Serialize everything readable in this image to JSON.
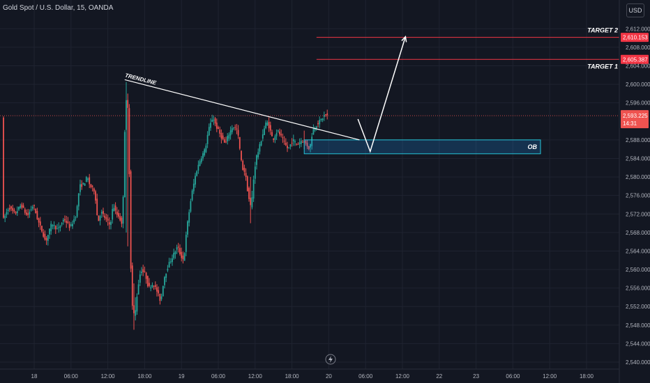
{
  "header": {
    "title": "Gold Spot / U.S. Dollar, 15, OANDA",
    "currency": "USD"
  },
  "colors": {
    "background": "#131722",
    "grid": "#1f2330",
    "text": "#b2b5be",
    "up": "#26a69a",
    "down": "#ef5350",
    "target_line": "#f23645",
    "ob_fill": "#2196f3",
    "ob_border": "#26c6da",
    "drawing": "#ffffff"
  },
  "icons": {
    "replay": "lightning-icon"
  },
  "chart_data": {
    "type": "candlestick",
    "symbol": "Gold Spot / U.S. Dollar",
    "ylim": [
      2538.5,
      2614
    ],
    "y_ticks": [
      {
        "value": 2540,
        "label": "2,540.000"
      },
      {
        "value": 2544,
        "label": "2,544.000"
      },
      {
        "value": 2548,
        "label": "2,548.000"
      },
      {
        "value": 2552,
        "label": "2,552.000"
      },
      {
        "value": 2556,
        "label": "2,556.000"
      },
      {
        "value": 2560,
        "label": "2,560.000"
      },
      {
        "value": 2564,
        "label": "2,564.000"
      },
      {
        "value": 2568,
        "label": "2,568.000"
      },
      {
        "value": 2572,
        "label": "2,572.000"
      },
      {
        "value": 2576,
        "label": "2,576.000"
      },
      {
        "value": 2580,
        "label": "2,580.000"
      },
      {
        "value": 2584,
        "label": "2,584.000"
      },
      {
        "value": 2588,
        "label": "2,588.000"
      },
      {
        "value": 2596,
        "label": "2,596.000"
      },
      {
        "value": 2600,
        "label": "2,600.000"
      },
      {
        "value": 2604,
        "label": "2,604.000"
      },
      {
        "value": 2608,
        "label": "2,608.000"
      },
      {
        "value": 2612,
        "label": "2,612.000"
      }
    ],
    "x_ticks": [
      {
        "t": 0,
        "label": "18"
      },
      {
        "t": 24,
        "label": "06:00"
      },
      {
        "t": 48,
        "label": "12:00"
      },
      {
        "t": 72,
        "label": "18:00"
      },
      {
        "t": 96,
        "label": "19"
      },
      {
        "t": 120,
        "label": "06:00"
      },
      {
        "t": 144,
        "label": "12:00"
      },
      {
        "t": 168,
        "label": "18:00"
      },
      {
        "t": 192,
        "label": "20"
      },
      {
        "t": 216,
        "label": "06:00"
      },
      {
        "t": 240,
        "label": "12:00"
      },
      {
        "t": 264,
        "label": "22"
      },
      {
        "t": 288,
        "label": "23"
      },
      {
        "t": 312,
        "label": "06:00"
      },
      {
        "t": 336,
        "label": "12:00"
      },
      {
        "t": 360,
        "label": "18:00"
      }
    ],
    "price_path": [
      [
        -20,
        2570.5
      ],
      [
        -16,
        2573.5
      ],
      [
        -12,
        2572
      ],
      [
        -8,
        2574
      ],
      [
        -4,
        2571.5
      ],
      [
        0,
        2574
      ],
      [
        3,
        2570.5
      ],
      [
        6,
        2568
      ],
      [
        8,
        2566
      ],
      [
        12,
        2570
      ],
      [
        16,
        2568.5
      ],
      [
        20,
        2571
      ],
      [
        24,
        2569
      ],
      [
        28,
        2572
      ],
      [
        30,
        2578
      ],
      [
        33,
        2578.5
      ],
      [
        35,
        2580
      ],
      [
        37,
        2578
      ],
      [
        40,
        2577
      ],
      [
        42,
        2570
      ],
      [
        44,
        2572.5
      ],
      [
        47,
        2571
      ],
      [
        50,
        2569.5
      ],
      [
        52,
        2574
      ],
      [
        54,
        2572
      ],
      [
        56,
        2571.5
      ],
      [
        58,
        2569
      ],
      [
        60,
        2597
      ],
      [
        62,
        2594
      ],
      [
        63,
        2568
      ],
      [
        64,
        2553
      ],
      [
        66,
        2549.5
      ],
      [
        68,
        2556
      ],
      [
        70,
        2560
      ],
      [
        73,
        2559
      ],
      [
        75,
        2556
      ],
      [
        78,
        2557
      ],
      [
        81,
        2555
      ],
      [
        83,
        2553
      ],
      [
        85,
        2558
      ],
      [
        88,
        2561
      ],
      [
        91,
        2563
      ],
      [
        94,
        2565
      ],
      [
        96,
        2563
      ],
      [
        98,
        2562
      ],
      [
        100,
        2569
      ],
      [
        103,
        2576
      ],
      [
        106,
        2581
      ],
      [
        109,
        2584
      ],
      [
        112,
        2586
      ],
      [
        114,
        2590
      ],
      [
        117,
        2593
      ],
      [
        119,
        2591
      ],
      [
        122,
        2589
      ],
      [
        125,
        2587
      ],
      [
        127,
        2589
      ],
      [
        130,
        2591
      ],
      [
        133,
        2590
      ],
      [
        136,
        2582
      ],
      [
        138,
        2581
      ],
      [
        140,
        2576
      ],
      [
        142,
        2573
      ],
      [
        143,
        2578
      ],
      [
        145,
        2584
      ],
      [
        147,
        2586
      ],
      [
        150,
        2590
      ],
      [
        152,
        2592
      ],
      [
        154,
        2590.5
      ],
      [
        156,
        2588
      ],
      [
        159,
        2590
      ],
      [
        161,
        2589
      ],
      [
        164,
        2587
      ],
      [
        166,
        2586
      ],
      [
        169,
        2588
      ],
      [
        172,
        2587
      ],
      [
        175,
        2588
      ],
      [
        178,
        2587
      ],
      [
        180,
        2586
      ],
      [
        182,
        2590
      ],
      [
        185,
        2591.5
      ],
      [
        188,
        2592.5
      ],
      [
        190,
        2593.5
      ],
      [
        191,
        2593.2
      ]
    ],
    "spikes": [
      {
        "t": 60,
        "high": 2600.5,
        "low": 2568
      },
      {
        "t": 61,
        "high": 2598,
        "low": 2565
      },
      {
        "t": 64,
        "high": 2561,
        "low": 2551.5
      },
      {
        "t": 65,
        "high": 2557,
        "low": 2547
      },
      {
        "t": 66,
        "high": 2554,
        "low": 2549
      },
      {
        "t": 141,
        "high": 2580,
        "low": 2570
      },
      {
        "t": 142,
        "high": 2577,
        "low": 2573
      },
      {
        "t": 176,
        "high": 2590,
        "low": 2586
      },
      {
        "t": 178,
        "high": 2588,
        "low": 2586
      }
    ],
    "current_price": {
      "value": 2593.225,
      "label": "2,593.225",
      "countdown": "14:31"
    },
    "levels": [
      {
        "name": "TARGET 2",
        "value": 2610.153,
        "label": "2,610.153",
        "t_start": 184
      },
      {
        "name": "TARGET 1",
        "value": 2605.387,
        "label": "2,605.387",
        "t_start": 184
      }
    ],
    "order_block": {
      "label": "OB",
      "t_start": 176,
      "t_end": 330,
      "top": 2588,
      "bottom": 2585
    },
    "trendline": {
      "label": "TRENDLINE",
      "t1": 59,
      "p1": 2601,
      "t2": 212,
      "p2": 2588
    },
    "projection": {
      "points": [
        [
          211,
          2592.5
        ],
        [
          219,
          2585.5
        ],
        [
          242,
          2610.3
        ]
      ]
    }
  }
}
